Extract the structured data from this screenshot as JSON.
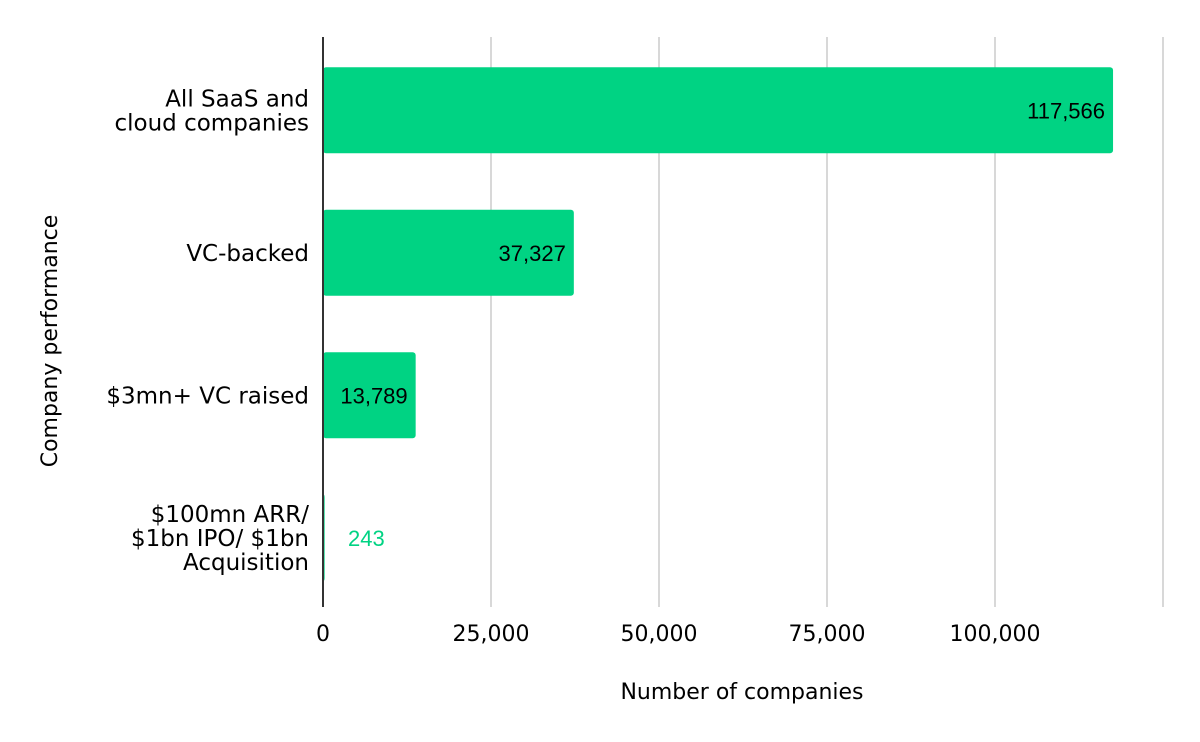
{
  "chart_data": {
    "type": "bar",
    "orientation": "horizontal",
    "categories": [
      [
        "All SaaS and",
        "cloud companies"
      ],
      [
        "VC-backed"
      ],
      [
        "$3mn+ VC raised"
      ],
      [
        "$100mn ARR/",
        "$1bn IPO/ $1bn",
        "Acquisition"
      ]
    ],
    "values": [
      117566,
      37327,
      13789,
      243
    ],
    "data_labels": [
      "117,566",
      "37,327",
      "13,789",
      "243"
    ],
    "xlabel": "Number of companies",
    "ylabel": "Company performance",
    "xlim": [
      0,
      125000
    ],
    "x_ticks": [
      0,
      25000,
      50000,
      75000,
      100000
    ],
    "x_tick_labels": [
      "0",
      "25,000",
      "50,000",
      "75,000",
      "100,000"
    ],
    "grid": true,
    "colors": {
      "bar": "#00d383",
      "gridline": "#cccccc",
      "axis": "#333333",
      "label_inside": "#000000",
      "label_outside": "#00d383"
    }
  }
}
